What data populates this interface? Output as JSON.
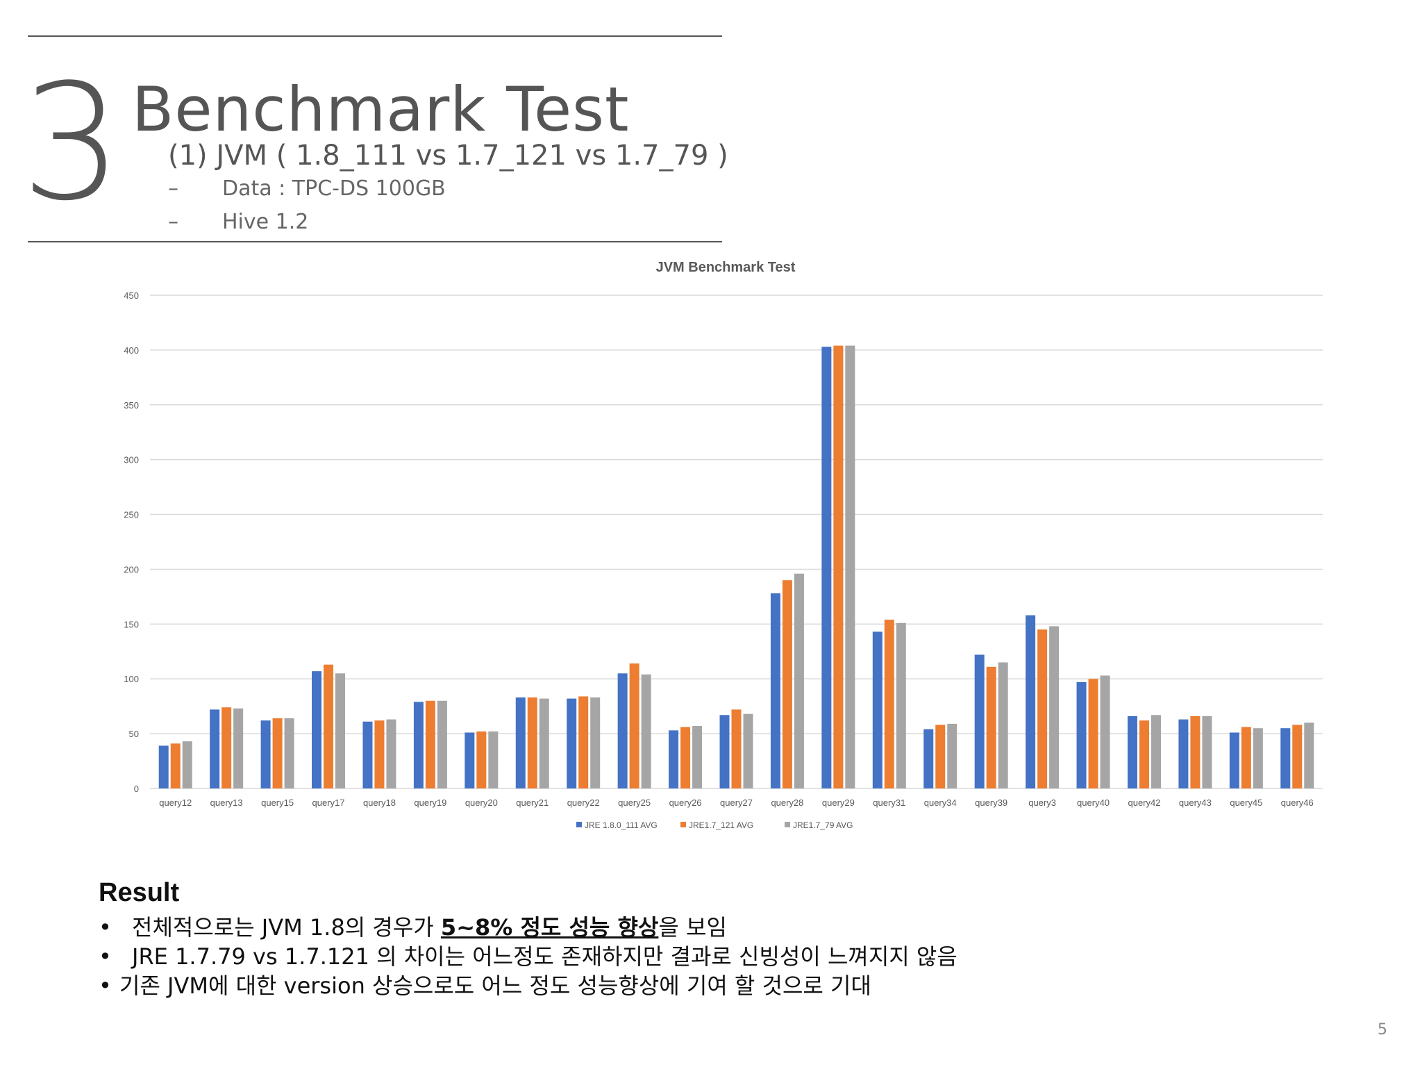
{
  "slide": {
    "section_number": "3",
    "title": "Benchmark Test",
    "subtitle": "(1) JVM ( 1.8_111 vs  1.7_121 vs 1.7_79 )",
    "details": [
      {
        "dash": "–",
        "text": "Data : TPC-DS 100GB"
      },
      {
        "dash": "–",
        "text": "Hive 1.2"
      }
    ],
    "page_number": "5"
  },
  "result": {
    "heading": "Result",
    "bullets": [
      {
        "dot": "•",
        "before": "전체적으로는 JVM 1.8의 경우가 ",
        "emphasis": "5~8% 정도 성능 향상",
        "after": "을 보임"
      },
      {
        "dot": "•",
        "text": "JRE 1.7.79 vs 1.7.121 의 차이는 어느정도 존재하지만 결과로 신빙성이 느껴지지 않음"
      },
      {
        "dot": "•",
        "text": "기존 JVM에 대한 version 상승으로도 어느 정도 성능향상에 기여 할 것으로 기대"
      }
    ]
  },
  "colors": {
    "series_1": "#4472c4",
    "series_2": "#ed7d31",
    "series_3": "#a5a5a5",
    "gridline": "#d9d9d9",
    "axis_text": "#595959"
  },
  "chart_data": {
    "type": "bar",
    "title": "JVM Benchmark Test",
    "xlabel": "",
    "ylabel": "",
    "ylim": [
      0,
      450
    ],
    "yticks": [
      0,
      50,
      100,
      150,
      200,
      250,
      300,
      350,
      400,
      450
    ],
    "grid": true,
    "legend_position": "bottom",
    "categories": [
      "query12",
      "query13",
      "query15",
      "query17",
      "query18",
      "query19",
      "query20",
      "query21",
      "query22",
      "query25",
      "query26",
      "query27",
      "query28",
      "query29",
      "query31",
      "query34",
      "query39",
      "query3",
      "query40",
      "query42",
      "query43",
      "query45",
      "query46"
    ],
    "series": [
      {
        "name": "JRE 1.8.0_111 AVG",
        "values": [
          39,
          72,
          62,
          107,
          61,
          79,
          51,
          83,
          82,
          105,
          53,
          67,
          178,
          403,
          143,
          54,
          122,
          158,
          97,
          66,
          63,
          51,
          55
        ]
      },
      {
        "name": "JRE1.7_121 AVG",
        "values": [
          41,
          74,
          64,
          113,
          62,
          80,
          52,
          83,
          84,
          114,
          56,
          72,
          190,
          404,
          154,
          58,
          111,
          145,
          100,
          62,
          66,
          56,
          58
        ]
      },
      {
        "name": "JRE1.7_79 AVG",
        "values": [
          43,
          73,
          64,
          105,
          63,
          80,
          52,
          82,
          83,
          104,
          57,
          68,
          196,
          404,
          151,
          59,
          115,
          148,
          103,
          67,
          66,
          55,
          60
        ]
      }
    ]
  }
}
